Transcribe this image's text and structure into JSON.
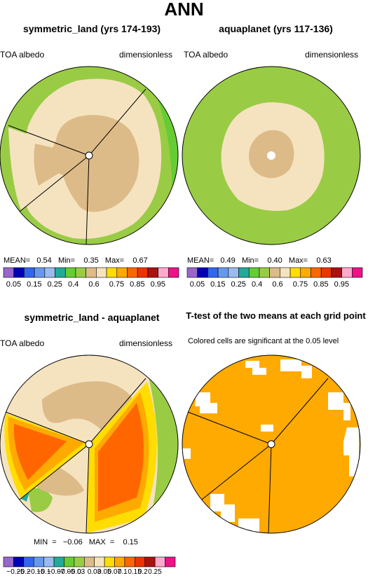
{
  "main_title": "ANN",
  "panels": [
    {
      "title": "symmetric_land (yrs 174-193)",
      "left_label": "TOA albedo",
      "right_label": "dimensionless",
      "stats_text": "MEAN=   0.54   Min=    0.35   Max=    0.67"
    },
    {
      "title": "aquaplanet (yrs 117-136)",
      "left_label": "TOA albedo",
      "right_label": "dimensionless",
      "stats_text": "MEAN=   0.49   Min=    0.40   Max=    0.63"
    },
    {
      "title": "symmetric_land - aquaplanet",
      "left_label": "TOA albedo",
      "right_label": "dimensionless",
      "stats_text": "MIN  =   −0.06   MAX  =    0.15"
    },
    {
      "title": "T-test of the two means at each grid point",
      "left_label": "Colored cells are significant at the 0.05 level",
      "right_label": "",
      "stats_text": ""
    }
  ],
  "colorbar_top": {
    "colors": [
      "#9966cc",
      "#0000b4",
      "#3366ee",
      "#6699ee",
      "#99bbee",
      "#22aa99",
      "#66cc33",
      "#99cc44",
      "#ddbb88",
      "#f5e3c0",
      "#ffdd00",
      "#ffaa00",
      "#ff6600",
      "#ee3300",
      "#aa1111",
      "#ffaacc",
      "#ee1188"
    ],
    "labels": [
      "0.05",
      "0.15",
      "0.25",
      "0.4",
      "0.6",
      "0.75",
      "0.85",
      "0.95"
    ]
  },
  "colorbar_diff": {
    "colors": [
      "#9966cc",
      "#0000b4",
      "#3366ee",
      "#6699ee",
      "#99bbee",
      "#22aa99",
      "#66cc33",
      "#99cc44",
      "#ddbb88",
      "#f5e3c0",
      "#ffdd00",
      "#ffaa00",
      "#ff6600",
      "#ee3300",
      "#aa1111",
      "#ffaacc",
      "#ee1188"
    ],
    "labels": [
      "−0.25",
      "−0.2",
      "−0.15",
      "−0.1",
      "−0.07",
      "−0.05",
      "−0.03",
      "0",
      "0.03",
      "0.05",
      "0.07",
      "0.1",
      "0.15",
      "0.2",
      "0.25"
    ]
  },
  "chart_data": [
    {
      "type": "heatmap",
      "title": "symmetric_land (yrs 174-193)",
      "variable": "TOA albedo",
      "units": "dimensionless",
      "mean": 0.54,
      "min": 0.35,
      "max": 0.67
    },
    {
      "type": "heatmap",
      "title": "aquaplanet (yrs 117-136)",
      "variable": "TOA albedo",
      "units": "dimensionless",
      "mean": 0.49,
      "min": 0.4,
      "max": 0.63
    },
    {
      "type": "heatmap",
      "title": "symmetric_land - aquaplanet",
      "variable": "TOA albedo",
      "units": "dimensionless",
      "min": -0.06,
      "max": 0.15
    },
    {
      "type": "heatmap",
      "title": "T-test of the two means at each grid point",
      "significance_level": 0.05
    }
  ],
  "colors": {
    "green": "#99cc44",
    "tan": "#f5e3c0",
    "brown": "#ddbb88",
    "yellow": "#ffdd00",
    "orange": "#ffaa00",
    "red_orange": "#ff6600",
    "light_green": "#66cc33",
    "teal": "#22aa99"
  }
}
